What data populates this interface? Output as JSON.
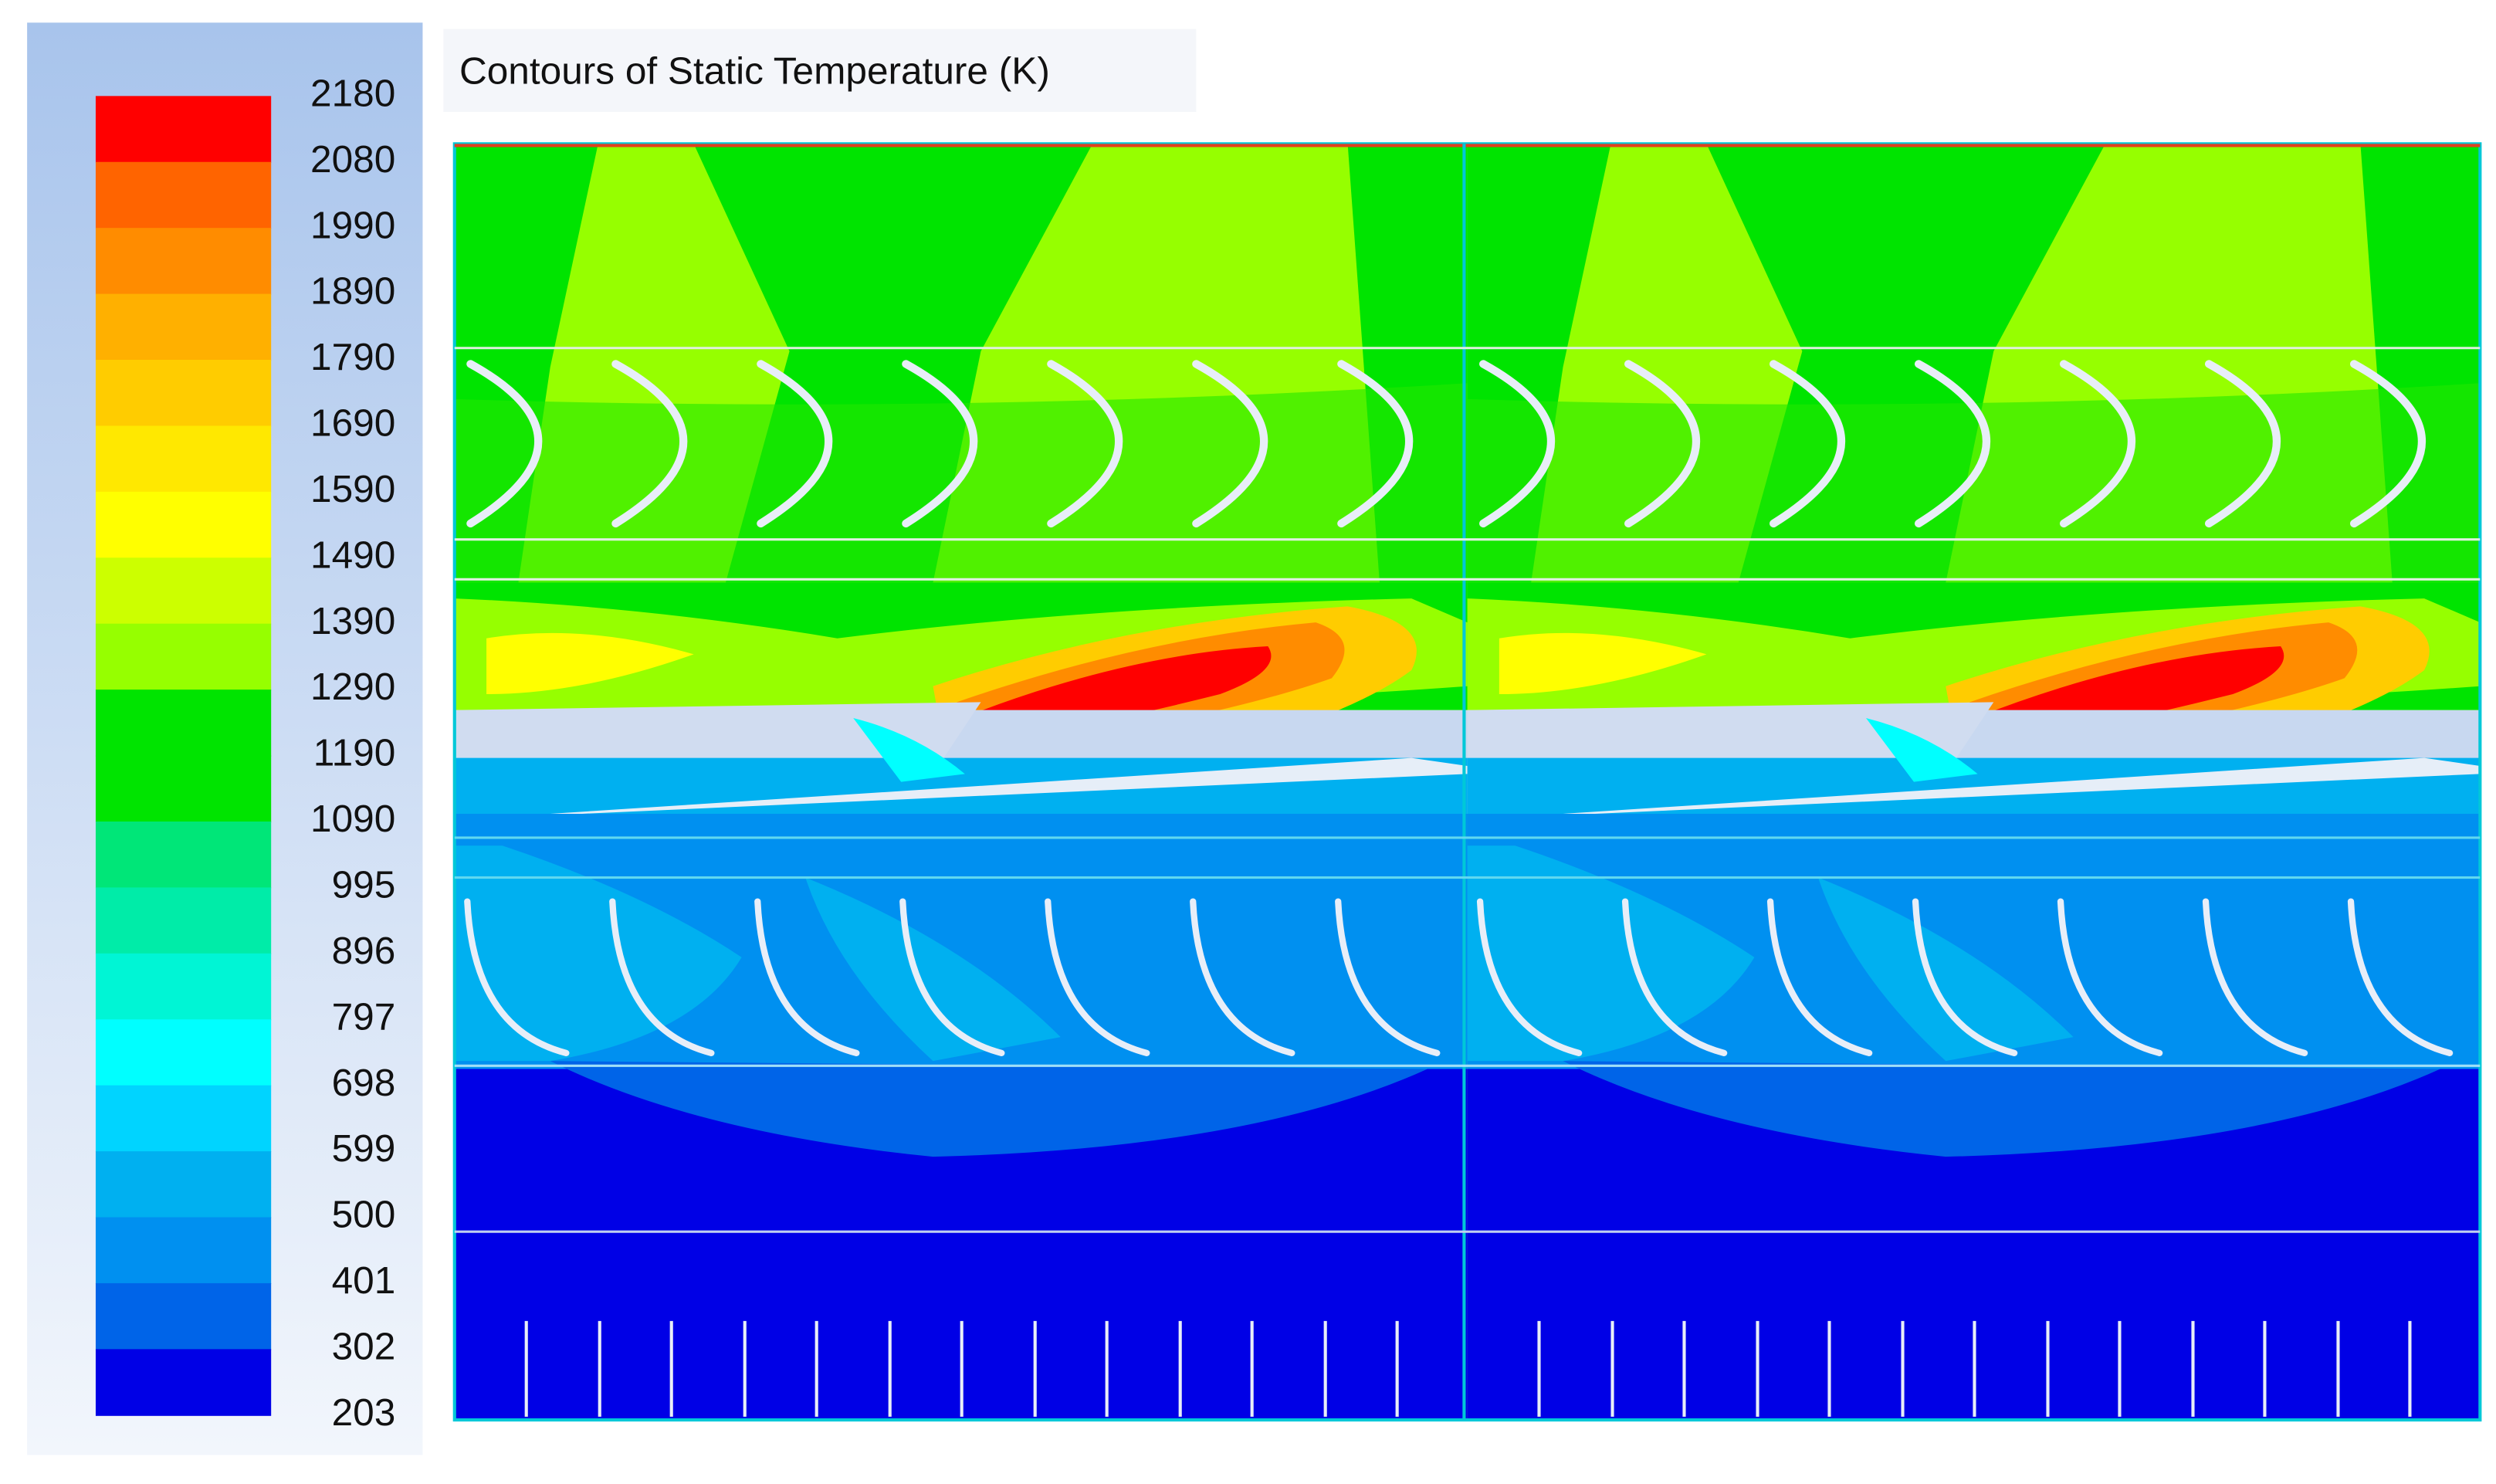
{
  "title": "Contours of Static Temperature (K)",
  "colorbar": {
    "labels": [
      "2180",
      "2080",
      "1990",
      "1890",
      "1790",
      "1690",
      "1590",
      "1490",
      "1390",
      "1290",
      "1190",
      "1090",
      "995",
      "896",
      "797",
      "698",
      "599",
      "500",
      "401",
      "302",
      "203"
    ],
    "colors": [
      "#ff0000",
      "#ff6400",
      "#ff8c00",
      "#ffb000",
      "#ffcc00",
      "#ffe800",
      "#ffff00",
      "#ccff00",
      "#96ff00",
      "#00e400",
      "#00e400",
      "#00e678",
      "#00eca8",
      "#00f5d5",
      "#00ffff",
      "#00d4ff",
      "#00b0f0",
      "#0090f0",
      "#0064e8",
      "#0000e6"
    ]
  }
}
